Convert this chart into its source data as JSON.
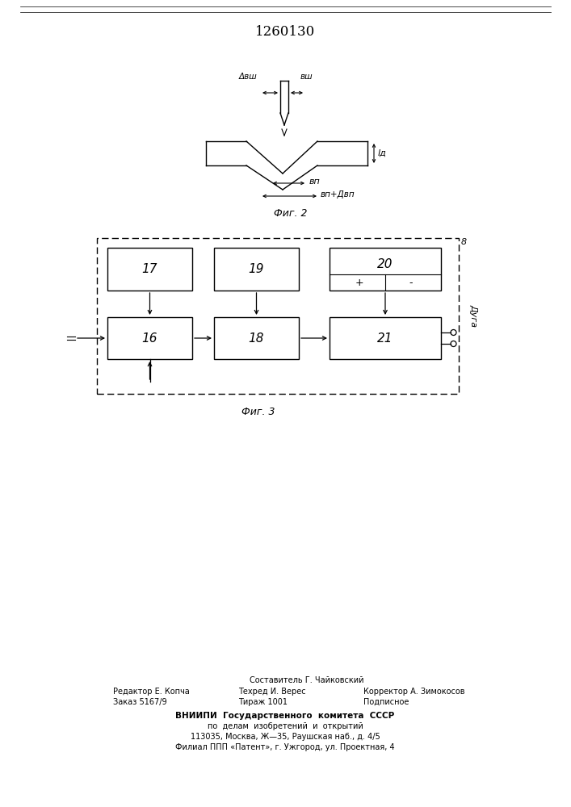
{
  "title": "1260130",
  "title_fontsize": 12,
  "background_color": "#ffffff",
  "fig2_label": "Фиг. 2",
  "fig3_label": "Фиг. 3",
  "label_delta_Bsh": "Δвш",
  "label_Bsh": "вш",
  "label_ld": "lд",
  "label_Bp": "вп",
  "label_Bp_delta": "вп+Двп",
  "label_8": "8",
  "label_Duga": "Дуга",
  "footer_line1": "Составитель Г. Чайковский",
  "footer_line2_left": "Редактор Е. Копча",
  "footer_line2_mid": "Техред И. Верес",
  "footer_line2_right": "Корректор А. Зимокосов",
  "footer_line3_left": "Заказ 5167/9",
  "footer_line3_mid": "Тираж 1001",
  "footer_line3_right": "Подписное",
  "footer_vniip1": "ВНИИПИ  Государственного  комитета  СССР",
  "footer_vniip2": "по  делам  изобретений  и  открытий",
  "footer_vniip3": "113035, Москва, Ж—35, Раушская наб., д. 4/5",
  "footer_vniip4": "Филиал ППП «Патент», г. Ужгород, ул. Проектная, 4"
}
